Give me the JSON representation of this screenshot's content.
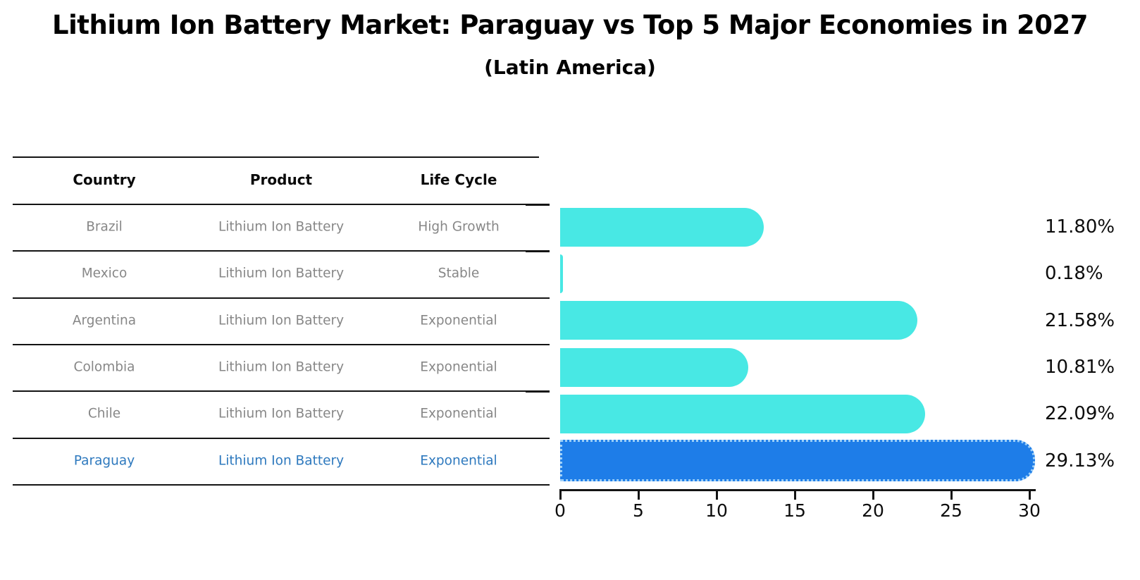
{
  "title": "Lithium Ion Battery Market: Paraguay vs Top 5 Major Economies in 2027",
  "subtitle": "(Latin America)",
  "table": {
    "headers": [
      "Country",
      "Product",
      "Life Cycle"
    ],
    "rows": [
      {
        "country": "Brazil",
        "product": "Lithium Ion Battery",
        "life_cycle": "High Growth",
        "highlight": false
      },
      {
        "country": "Mexico",
        "product": "Lithium Ion Battery",
        "life_cycle": "Stable",
        "highlight": false
      },
      {
        "country": "Argentina",
        "product": "Lithium Ion Battery",
        "life_cycle": "Exponential",
        "highlight": false
      },
      {
        "country": "Colombia",
        "product": "Lithium Ion Battery",
        "life_cycle": "Exponential",
        "highlight": false
      },
      {
        "country": "Chile",
        "product": "Lithium Ion Battery",
        "life_cycle": "Exponential",
        "highlight": false
      },
      {
        "country": "Paraguay",
        "product": "Lithium Ion Battery",
        "life_cycle": "Exponential",
        "highlight": true
      }
    ]
  },
  "chart_data": {
    "type": "bar",
    "orientation": "horizontal",
    "title": "Lithium Ion Battery Market: Paraguay vs Top 5 Major Economies in 2027 (Latin America)",
    "categories": [
      "Brazil",
      "Mexico",
      "Argentina",
      "Colombia",
      "Chile",
      "Paraguay"
    ],
    "values": [
      11.8,
      0.18,
      21.58,
      10.81,
      22.09,
      29.13
    ],
    "value_labels": [
      "11.80%",
      "0.18%",
      "21.58%",
      "10.81%",
      "22.09%",
      "29.13%"
    ],
    "xlabel": "",
    "ylabel": "",
    "xlim": [
      0,
      30
    ],
    "x_ticks": [
      0,
      5,
      10,
      15,
      20,
      25,
      30
    ],
    "grid": false,
    "legend": false,
    "bar_color": "#48E8E4",
    "highlight_bar_color": "#1E7DE8",
    "highlight_index": 5,
    "highlight_text_color": "#2E79BE"
  },
  "colors": {
    "bar_cyan": "#48E8E4",
    "bar_blue": "#1E7DE8",
    "highlight_text": "#2E79BE",
    "muted_text": "#878787",
    "line": "#141414"
  }
}
